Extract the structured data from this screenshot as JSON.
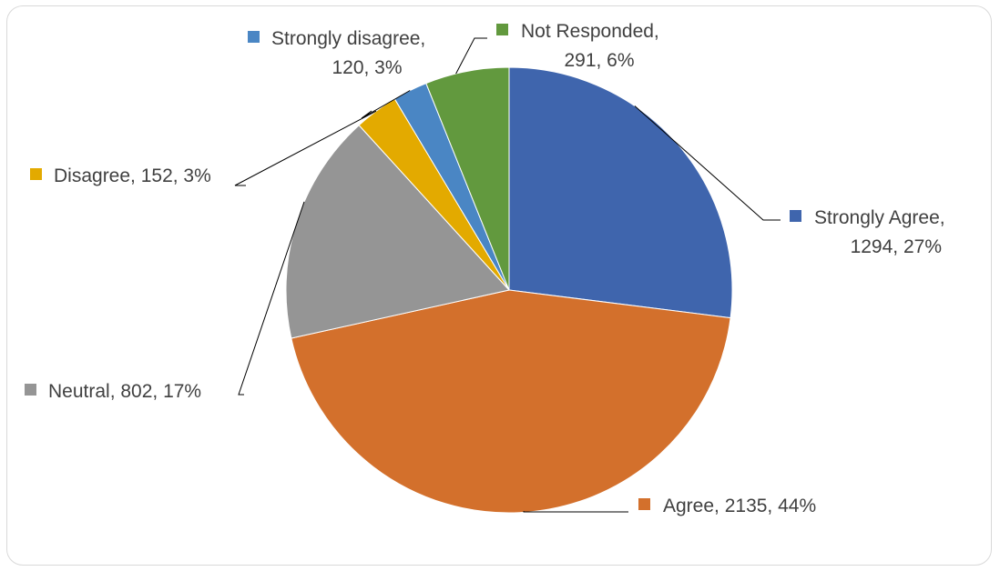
{
  "chart_data": {
    "type": "pie",
    "title": "",
    "start_angle_deg": 0,
    "direction": "clockwise",
    "slices": [
      {
        "name": "Strongly Agree",
        "value": 1294,
        "percent": "27%",
        "color": "#3f65ad"
      },
      {
        "name": "Agree",
        "value": 2135,
        "percent": "44%",
        "color": "#d3702c"
      },
      {
        "name": "Neutral",
        "value": 802,
        "percent": "17%",
        "color": "#959595"
      },
      {
        "name": "Disagree",
        "value": 152,
        "percent": "3%",
        "color": "#e3aa00"
      },
      {
        "name": "Strongly disagree",
        "value": 120,
        "percent": "3%",
        "color": "#4a86c4"
      },
      {
        "name": "Not Responded",
        "value": 291,
        "percent": "6%",
        "color": "#62993e"
      }
    ],
    "labels": [
      {
        "line1": "Strongly Agree,",
        "line2": "1294, 27%"
      },
      {
        "line1": "Agree, 2135, 44%",
        "line2": ""
      },
      {
        "line1": "Neutral, 802, 17%",
        "line2": ""
      },
      {
        "line1": "Disagree, 152, 3%",
        "line2": ""
      },
      {
        "line1": "Strongly disagree,",
        "line2": "120, 3%"
      },
      {
        "line1": "Not Responded,",
        "line2": "291, 6%"
      }
    ]
  }
}
